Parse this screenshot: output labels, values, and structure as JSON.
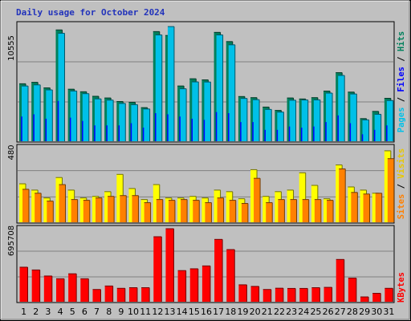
{
  "chart_data": {
    "type": "bar",
    "title": "Daily usage for October 2024",
    "categories": [
      "1",
      "2",
      "3",
      "4",
      "5",
      "6",
      "7",
      "8",
      "9",
      "10",
      "11",
      "12",
      "13",
      "14",
      "15",
      "16",
      "17",
      "18",
      "19",
      "20",
      "21",
      "22",
      "23",
      "24",
      "25",
      "26",
      "27",
      "28",
      "29",
      "30",
      "31"
    ],
    "weekend_days": [
      "5",
      "6",
      "12",
      "13",
      "19",
      "20",
      "26",
      "27"
    ],
    "panels": [
      {
        "y_max_label": "10555",
        "ylim": [
          0,
          10555
        ],
        "legend": [
          {
            "text": "Hits",
            "color": "#00805c"
          },
          {
            "text": "Files",
            "color": "#0000ff"
          },
          {
            "text": "Pages",
            "color": "#00c0e8"
          }
        ],
        "series": [
          {
            "name": "Hits",
            "color": "#00805c",
            "values": [
              5250,
              5380,
              4880,
              10100,
              4760,
              4530,
              4120,
              3970,
              3650,
              3580,
              3100,
              9950,
              9600,
              5050,
              5700,
              5600,
              9880,
              9050,
              4100,
              4000,
              3150,
              2850,
              3970,
              3880,
              4000,
              4590,
              6250,
              4500,
              2110,
              2760,
              3940
            ]
          },
          {
            "name": "Files",
            "color": "#0000ff",
            "values": [
              2300,
              2500,
              2100,
              3700,
              2200,
              1900,
              1500,
              1500,
              1500,
              1700,
              1300,
              2600,
              2500,
              2300,
              2100,
              2000,
              2700,
              2600,
              1800,
              1800,
              1100,
              1100,
              1400,
              1300,
              1400,
              1800,
              2400,
              1700,
              700,
              1100,
              1500
            ]
          },
          {
            "name": "Pages",
            "color": "#00c0e8",
            "values": [
              5050,
              5150,
              4700,
              9800,
              4600,
              4360,
              3890,
              3780,
              3480,
              3370,
              2980,
              9650,
              10400,
              4800,
              5420,
              5410,
              9650,
              8760,
              3930,
              3820,
              2940,
              2700,
              3770,
              3790,
              3800,
              4410,
              6000,
              4330,
              2000,
              2500,
              3740
            ]
          }
        ]
      },
      {
        "y_max_label": "480",
        "ylim": [
          0,
          480
        ],
        "legend": [
          {
            "text": "Visits",
            "color": "#e8c800"
          },
          {
            "text": "Sites",
            "color": "#ff8000"
          }
        ],
        "series": [
          {
            "name": "Visits",
            "color": "#ffff00",
            "values": [
              250,
              210,
              160,
              290,
              210,
              160,
              170,
              200,
              310,
              220,
              150,
              245,
              160,
              160,
              170,
              160,
              210,
              200,
              155,
              340,
              170,
              200,
              210,
              320,
              240,
              155,
              370,
              230,
              210,
              190,
              460
            ]
          },
          {
            "name": "Sites",
            "color": "#ff8000",
            "values": [
              215,
              190,
              140,
              245,
              150,
              145,
              160,
              170,
              175,
              175,
              130,
              150,
              145,
              150,
              145,
              130,
              160,
              145,
              125,
              285,
              130,
              150,
              150,
              150,
              150,
              145,
              345,
              195,
              185,
              190,
              410
            ]
          }
        ]
      },
      {
        "y_max_label": "695708",
        "ylim": [
          0,
          695708
        ],
        "legend": [
          {
            "text": "KBytes",
            "color": "#ff0000"
          }
        ],
        "series": [
          {
            "name": "KBytes",
            "color": "#ff0000",
            "values": [
              333000,
              307000,
              250000,
              224000,
              271000,
              224000,
              123000,
              156000,
              134000,
              140000,
              140000,
              620000,
              695708,
              301000,
              318000,
              345000,
              595000,
              499000,
              167000,
              152000,
              123000,
              135000,
              133000,
              133000,
              140000,
              143000,
              406000,
              230000,
              53000,
              87000,
              134000
            ]
          }
        ]
      }
    ]
  }
}
